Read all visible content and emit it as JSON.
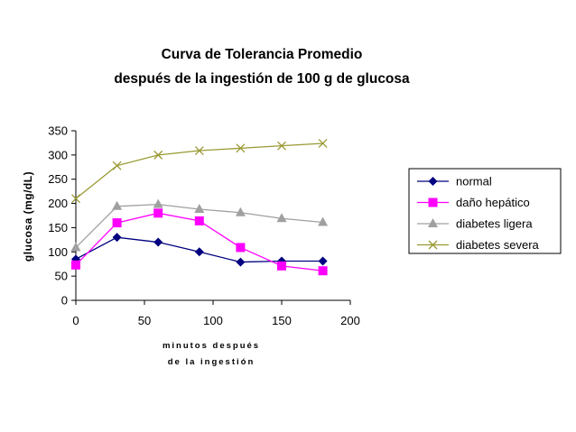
{
  "chart_data": {
    "type": "line",
    "title_lines": [
      "Curva de Tolerancia Promedio",
      "después de la ingestión de 100 g de glucosa"
    ],
    "ylabel": "glucosa (mg/dL)",
    "xlabel_lines": [
      "minutos después",
      "de la ingestión"
    ],
    "xlim": [
      0,
      200
    ],
    "ylim": [
      0,
      350
    ],
    "xticks": [
      0,
      50,
      100,
      150,
      200
    ],
    "yticks": [
      0,
      50,
      100,
      150,
      200,
      250,
      300,
      350
    ],
    "x": [
      0,
      30,
      60,
      90,
      120,
      150,
      180
    ],
    "legend_position": "right",
    "series": [
      {
        "name": "normal",
        "values": [
          85,
          130,
          120,
          100,
          79,
          81,
          81
        ],
        "color": "#000080",
        "marker": "diamond"
      },
      {
        "name": "daño hepático",
        "values": [
          73,
          160,
          180,
          164,
          109,
          71,
          61
        ],
        "color": "#FF00FF",
        "marker": "square"
      },
      {
        "name": "diabetes ligera",
        "values": [
          109,
          194,
          198,
          188,
          181,
          169,
          161
        ],
        "color": "#A0A0A0",
        "marker": "triangle"
      },
      {
        "name": "diabetes severa",
        "values": [
          210,
          278,
          300,
          309,
          314,
          319,
          324
        ],
        "color": "#999933",
        "marker": "x"
      }
    ]
  }
}
